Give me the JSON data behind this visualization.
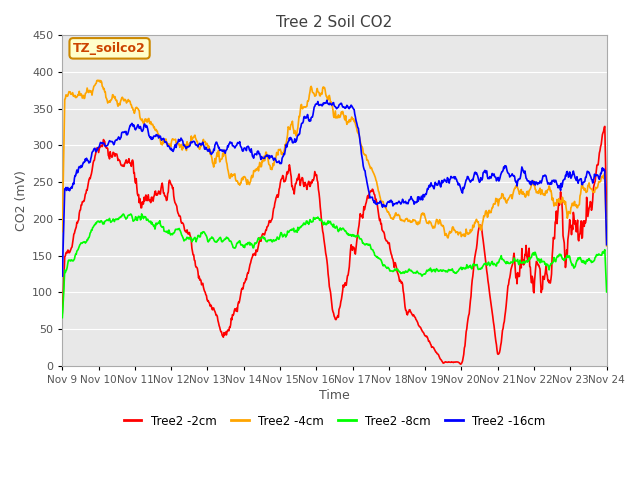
{
  "title": "Tree 2 Soil CO2",
  "ylabel": "CO2 (mV)",
  "xlabel": "Time",
  "annotation": "TZ_soilco2",
  "x_tick_labels": [
    "Nov 9",
    "Nov 10",
    "Nov 11",
    "Nov 12",
    "Nov 13",
    "Nov 14",
    "Nov 15",
    "Nov 16",
    "Nov 17",
    "Nov 18",
    "Nov 19",
    "Nov 20",
    "Nov 21",
    "Nov 22",
    "Nov 23",
    "Nov 24"
  ],
  "ylim": [
    0,
    450
  ],
  "colors": {
    "red": "#ff0000",
    "orange": "#ffa500",
    "green": "#00ff00",
    "blue": "#0000ff"
  },
  "legend_labels": [
    "Tree2 -2cm",
    "Tree2 -4cm",
    "Tree2 -8cm",
    "Tree2 -16cm"
  ],
  "bg_color": "#e8e8e8",
  "title_color": "#404040",
  "annotation_bg": "#ffffcc",
  "annotation_border": "#cc8800"
}
